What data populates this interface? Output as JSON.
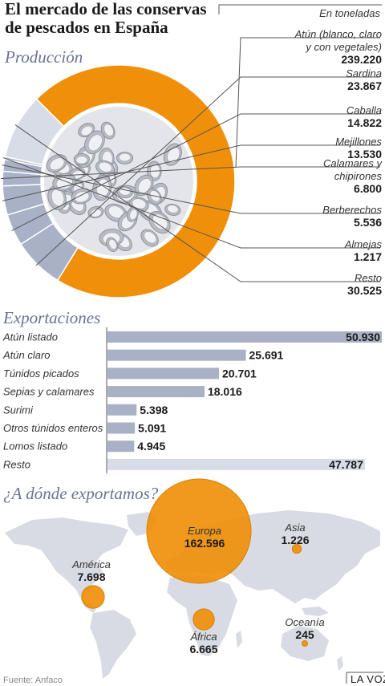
{
  "header": {
    "title_line1": "El mercado de las conservas",
    "title_line2": "de pescados en España",
    "unit": "En toneladas"
  },
  "colors": {
    "orange": "#f0900a",
    "grey_blue": "#a8b1c6",
    "light": "#d7dce6",
    "map": "#d8dbe3",
    "text_section": "#6a7390"
  },
  "chart_data": [
    {
      "type": "pie",
      "title": "Producción",
      "slices": [
        {
          "label_lines": [
            "Atún (blanco, claro",
            "y con vegetales)"
          ],
          "value": 239220,
          "value_text": "239.220"
        },
        {
          "label_lines": [
            "Sardina"
          ],
          "value": 23867,
          "value_text": "23.867"
        },
        {
          "label_lines": [
            "Caballa"
          ],
          "value": 14822,
          "value_text": "14.822"
        },
        {
          "label_lines": [
            "Mejillones"
          ],
          "value": 13530,
          "value_text": "13.530"
        },
        {
          "label_lines": [
            "Calamares y",
            "chipirones"
          ],
          "value": 6800,
          "value_text": "6.800"
        },
        {
          "label_lines": [
            "Berberechos"
          ],
          "value": 5536,
          "value_text": "5.536"
        },
        {
          "label_lines": [
            "Almejas"
          ],
          "value": 1217,
          "value_text": "1.217"
        },
        {
          "label_lines": [
            "Resto"
          ],
          "value": 30525,
          "value_text": "30.525"
        }
      ]
    },
    {
      "type": "bar",
      "title": "Exportaciones",
      "orientation": "horizontal",
      "categories": [
        "Atún listado",
        "Atún claro",
        "Túnidos picados",
        "Sepias y calamares",
        "Surimi",
        "Otros túnidos enteros",
        "Lomos listado",
        "Resto"
      ],
      "values": [
        50930,
        25691,
        20701,
        18016,
        5398,
        5091,
        4945,
        47787
      ],
      "value_texts": [
        "50.930",
        "25.691",
        "20.701",
        "18.016",
        "5.398",
        "5.091",
        "4.945",
        "47.787"
      ]
    },
    {
      "type": "bubble-map",
      "title": "¿A dónde exportamos?",
      "regions": [
        {
          "name": "Europa",
          "value": 162596,
          "value_text": "162.596"
        },
        {
          "name": "América",
          "value": 7698,
          "value_text": "7.698"
        },
        {
          "name": "África",
          "value": 6665,
          "value_text": "6.665"
        },
        {
          "name": "Asia",
          "value": 1226,
          "value_text": "1.226"
        },
        {
          "name": "Oceanía",
          "value": 245,
          "value_text": "245"
        }
      ]
    }
  ],
  "footer": {
    "source": "Fuente: Anfaco",
    "brand": "LA VOZ"
  }
}
